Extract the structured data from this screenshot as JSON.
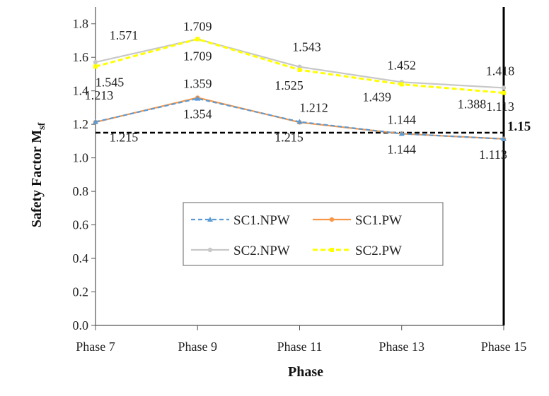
{
  "chart_data": {
    "type": "line",
    "title": "",
    "xlabel": "Phase",
    "ylabel": "Safety Factor M",
    "ylabel_sub": "sf",
    "categories": [
      "Phase 7",
      "Phase 9",
      "Phase 11",
      "Phase 13",
      "Phase 15"
    ],
    "ylim": [
      0,
      1.9
    ],
    "yticks": [
      "0.0",
      "0.2",
      "0.4",
      "0.6",
      "0.8",
      "1.0",
      "1.2",
      "1.4",
      "1.6",
      "1.8"
    ],
    "grid": false,
    "legend_position": "center",
    "reference_line": {
      "value": 1.15,
      "label": "1.15",
      "color": "#000000"
    },
    "series": [
      {
        "name": "SC1.NPW",
        "values": [
          1.215,
          1.354,
          1.215,
          1.144,
          1.113
        ],
        "color": "#5b9bd5",
        "dash": "6,4",
        "marker": "triangle",
        "labels": [
          "1.215",
          "1.354",
          "1.215",
          "1.144",
          "1.113"
        ]
      },
      {
        "name": "SC1.PW",
        "values": [
          1.213,
          1.359,
          1.212,
          1.144,
          1.113
        ],
        "color": "#f79646",
        "dash": "",
        "marker": "circle",
        "labels": [
          "1.213",
          "1.359",
          "1.212",
          "1.144",
          "1.113"
        ]
      },
      {
        "name": "SC2.NPW",
        "values": [
          1.571,
          1.709,
          1.543,
          1.452,
          1.418
        ],
        "color": "#c8c8c8",
        "dash": "",
        "marker": "circle",
        "labels": [
          "1.571",
          "1.709",
          "1.543",
          "1.452",
          "1.418"
        ]
      },
      {
        "name": "SC2.PW",
        "values": [
          1.545,
          1.709,
          1.525,
          1.439,
          1.388
        ],
        "color": "#ffff00",
        "dash": "7,4",
        "marker": "square",
        "labels": [
          "1.545",
          "1.709",
          "1.525",
          "1.439",
          "1.388"
        ]
      }
    ]
  }
}
